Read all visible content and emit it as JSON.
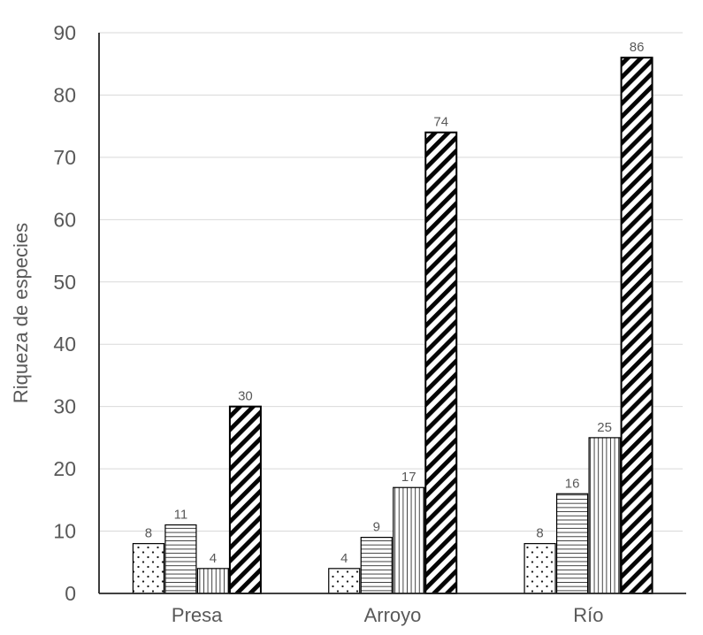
{
  "chart_data": {
    "type": "bar",
    "title": "",
    "xlabel": "",
    "ylabel": "Riqueza de especies",
    "categories": [
      "Presa",
      "Arroyo",
      "Río"
    ],
    "series": [
      {
        "name": "dots-pattern-series",
        "pattern": "dots",
        "values": [
          8,
          4,
          8
        ]
      },
      {
        "name": "horizontal-lines-pattern-series",
        "pattern": "horizontal-lines",
        "values": [
          11,
          9,
          16
        ]
      },
      {
        "name": "vertical-lines-pattern-series",
        "pattern": "vertical-lines",
        "values": [
          4,
          17,
          25
        ]
      },
      {
        "name": "diagonal-stripes-pattern-series",
        "pattern": "diagonal-stripes",
        "values": [
          30,
          74,
          86
        ]
      }
    ],
    "data_labels": {
      "Presa": [
        8,
        11,
        4,
        30
      ],
      "Arroyo": [
        4,
        9,
        17,
        74
      ],
      "Río": [
        8,
        16,
        25,
        86
      ]
    },
    "ylim": [
      0,
      90
    ],
    "ytick_step": 10,
    "ytick_labels": [
      "0",
      "10",
      "20",
      "30",
      "40",
      "50",
      "60",
      "70",
      "80",
      "90"
    ],
    "grid": true,
    "legend": false,
    "colors": {
      "bar_fill": "#ffffff",
      "pattern_ink": "#111111",
      "bar_outline": "#000000",
      "axis_line": "#262626",
      "gridline": "#d9d9d9",
      "tick_text": "#595959",
      "value_label_text": "#595959",
      "background": "#ffffff"
    }
  }
}
